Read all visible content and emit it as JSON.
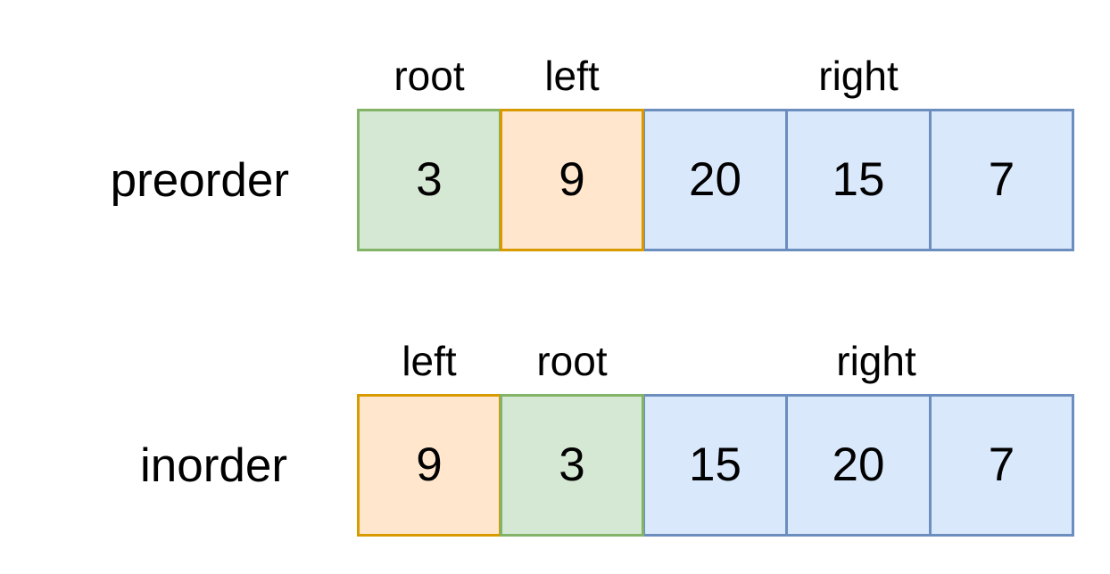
{
  "preorder": {
    "label": "preorder",
    "segments": [
      "root",
      "left",
      "right"
    ],
    "values": [
      "3",
      "9",
      "20",
      "15",
      "7"
    ]
  },
  "inorder": {
    "label": "inorder",
    "segments": [
      "left",
      "root",
      "right"
    ],
    "values": [
      "9",
      "3",
      "15",
      "20",
      "7"
    ]
  },
  "colors": {
    "root_fill": "#d5e8d4",
    "root_border": "#82b366",
    "left_fill": "#ffe6cc",
    "left_border": "#d79b00",
    "right_fill": "#dae8fc",
    "right_border": "#6c8ebf"
  }
}
